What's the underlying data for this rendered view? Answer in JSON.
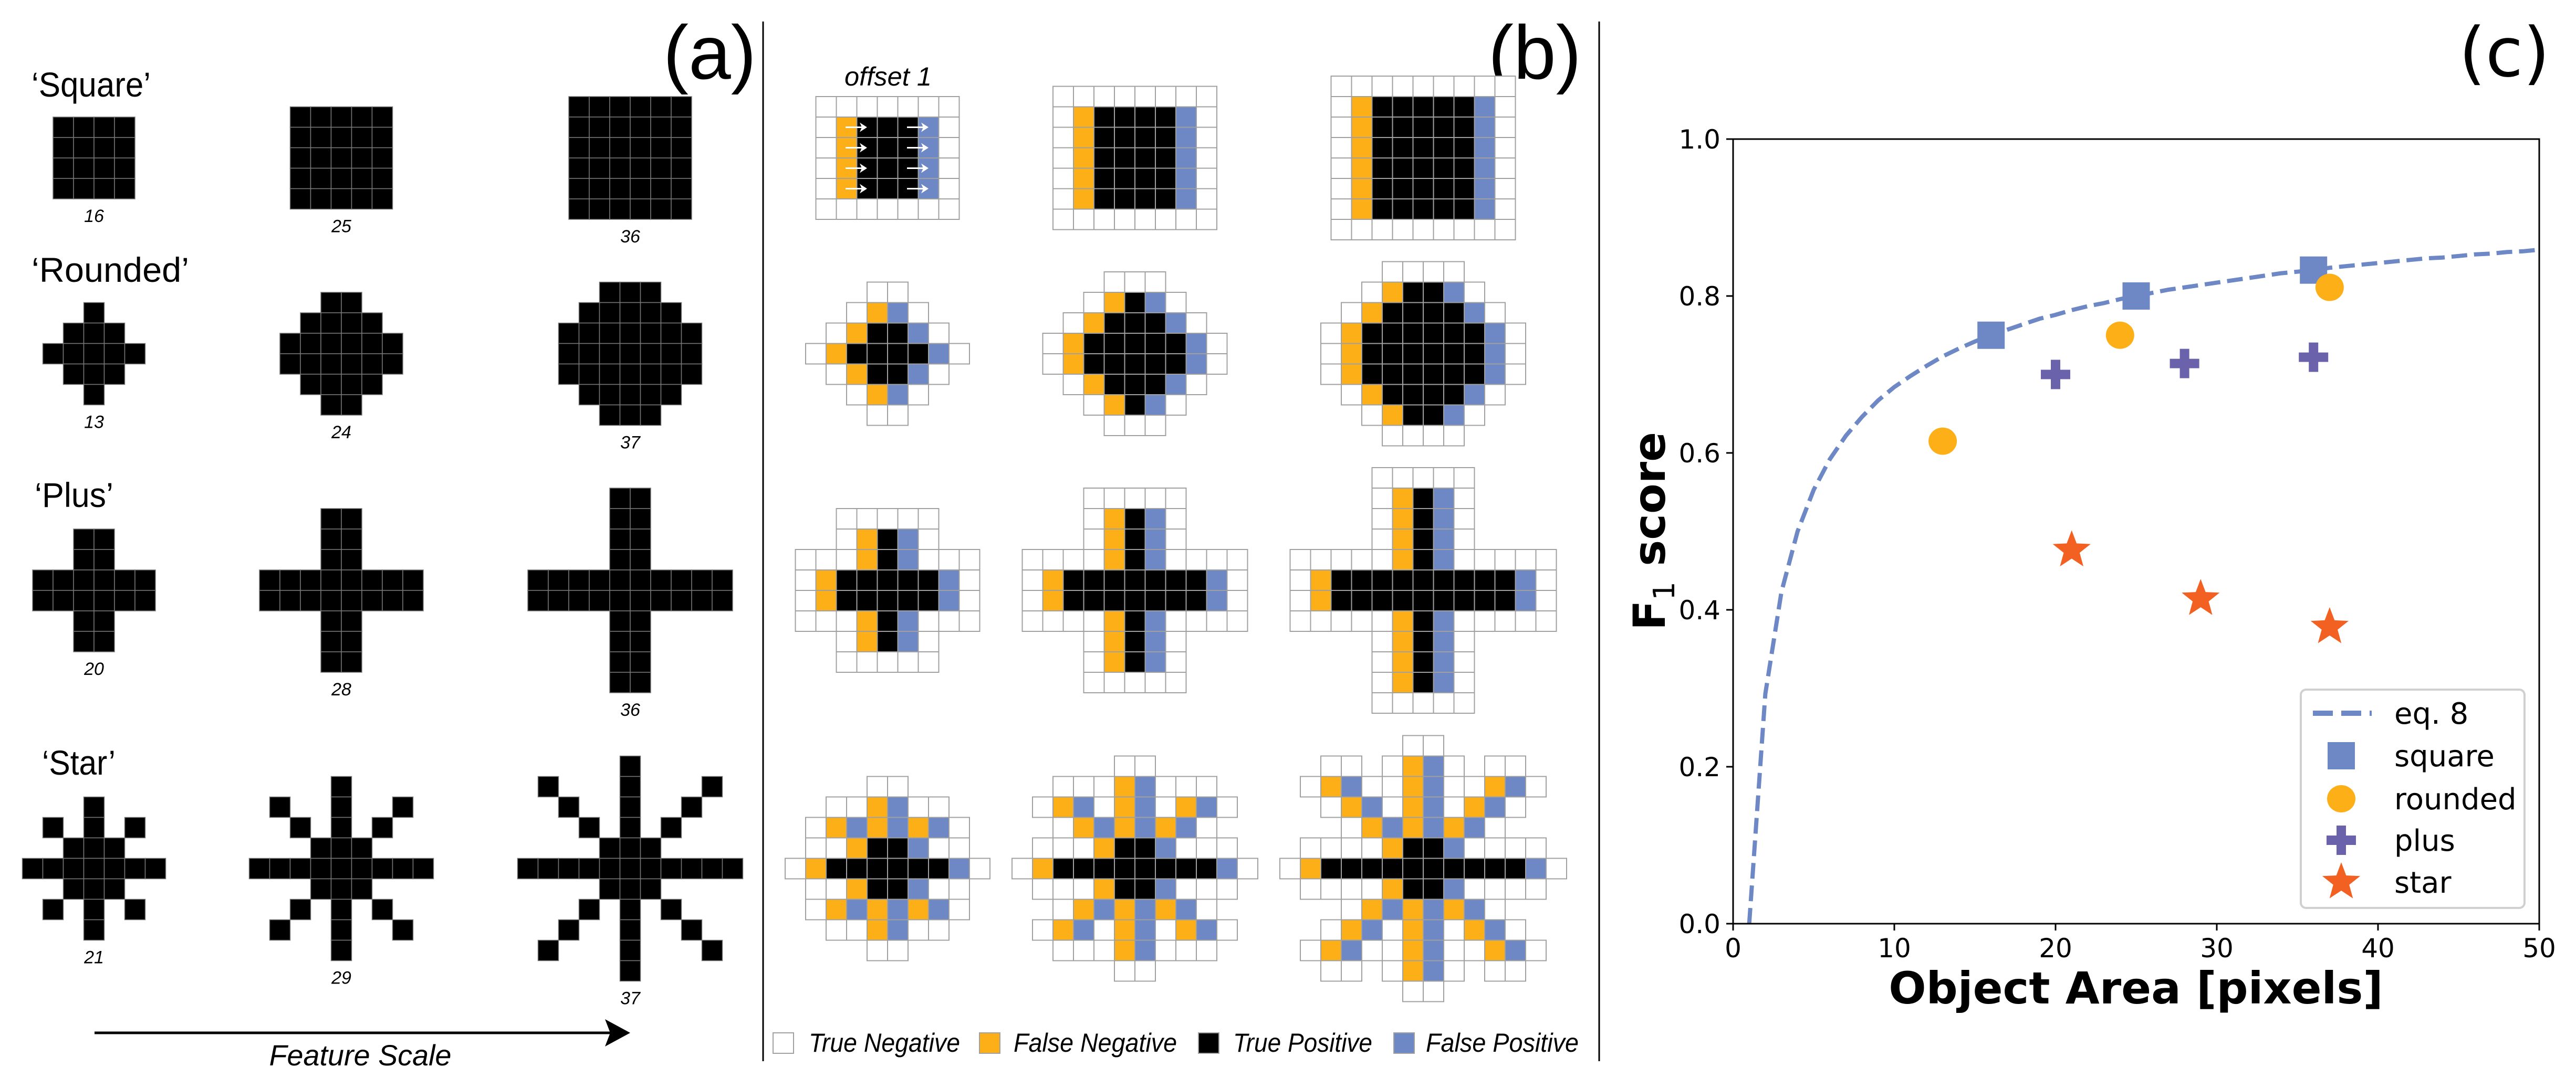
{
  "colors": {
    "true_negative": "#ffffff",
    "false_negative": "#FCAF17",
    "true_positive": "#000000",
    "false_positive": "#6D88C4",
    "square": "#6D88C4",
    "rounded": "#FCAF17",
    "plus": "#6A62AB",
    "star": "#F26122",
    "grid_line": "#a0a0a0"
  },
  "panel_a": {
    "label": "(a)",
    "arrow_label": "Feature Scale",
    "rows": [
      {
        "title": "‘Square’",
        "shapes": [
          {
            "area": "16",
            "mask": [
              "####",
              "####",
              "####",
              "####"
            ]
          },
          {
            "area": "25",
            "mask": [
              "#####",
              "#####",
              "#####",
              "#####",
              "#####"
            ]
          },
          {
            "area": "36",
            "mask": [
              "######",
              "######",
              "######",
              "######",
              "######",
              "######"
            ]
          }
        ]
      },
      {
        "title": "‘Rounded’",
        "shapes": [
          {
            "area": "13",
            "mask": [
              "..#..",
              ".###.",
              "#####",
              ".###.",
              "..#.."
            ]
          },
          {
            "area": "24",
            "mask": [
              "..##..",
              ".####.",
              "######",
              "######",
              ".####.",
              "..##.."
            ]
          },
          {
            "area": "37",
            "mask": [
              "..###..",
              ".#####.",
              "#######",
              "#######",
              "#######",
              ".#####.",
              "..###.."
            ]
          }
        ]
      },
      {
        "title": "‘Plus’",
        "shapes": [
          {
            "area": "20",
            "mask": [
              "..##..",
              "..##..",
              "######",
              "######",
              "..##..",
              "..##.."
            ]
          },
          {
            "area": "28",
            "mask": [
              "...##...",
              "...##...",
              "...##...",
              "########",
              "########",
              "...##...",
              "...##...",
              "...##..."
            ]
          },
          {
            "area": "36",
            "mask": [
              "....##....",
              "....##....",
              "....##....",
              "....##....",
              "##########",
              "##########",
              "....##....",
              "....##....",
              "....##....",
              "....##...."
            ]
          }
        ]
      },
      {
        "title": "‘Star’",
        "shapes": [
          {
            "area": "21",
            "mask": [
              "...#...",
              ".#.#.#.",
              "..###..",
              "#######",
              "..###..",
              ".#.#.#.",
              "...#..."
            ]
          },
          {
            "area": "29",
            "mask": [
              "....#....",
              ".#..#..#.",
              "..#.#.#..",
              "...###...",
              "#########",
              "...###...",
              "..#.#.#..",
              ".#..#..#.",
              "....#...."
            ]
          },
          {
            "area": "37",
            "mask": [
              ".....#.....",
              ".#...#...#.",
              "..#..#..#..",
              "...#.#.#...",
              "....###....",
              "###########",
              "....###....",
              "...#.#.#...",
              "..#..#..#..",
              ".#...#...#.",
              ".....#....."
            ]
          }
        ]
      }
    ]
  },
  "panel_b": {
    "label": "(b)",
    "annotation": "offset 1",
    "offset": 1,
    "legend": [
      {
        "label": "True Negative",
        "key": "true_negative"
      },
      {
        "label": "False Negative",
        "key": "false_negative"
      },
      {
        "label": "True Positive",
        "key": "true_positive"
      },
      {
        "label": "False Positive",
        "key": "false_positive"
      }
    ]
  },
  "chart_data": {
    "type": "scatter",
    "panel_label": "(c)",
    "xlabel": "Object Area [pixels]",
    "ylabel": {
      "main": "F",
      "sub": "1",
      "rest": " score"
    },
    "xlim": [
      0,
      50
    ],
    "ylim": [
      0.0,
      1.0
    ],
    "xticks": [
      "0",
      "10",
      "20",
      "30",
      "40",
      "50"
    ],
    "yticks": [
      "0.0",
      "0.2",
      "0.4",
      "0.6",
      "0.8",
      "1.0"
    ],
    "grid": false,
    "legend_position": "lower-right",
    "line": {
      "name": "eq. 8",
      "style": "dashed",
      "color": "#6D88C4",
      "x": [
        1,
        2,
        3,
        4,
        5,
        6,
        7,
        8,
        9,
        10,
        11,
        12,
        13,
        14,
        15,
        16,
        17,
        18,
        19,
        20,
        21,
        22,
        23,
        24,
        25,
        26,
        27,
        28,
        29,
        30,
        31,
        32,
        33,
        34,
        35,
        36,
        37,
        38,
        39,
        40,
        41,
        42,
        43,
        44,
        45,
        46,
        47,
        48,
        49,
        50
      ],
      "y": [
        0,
        0.293,
        0.423,
        0.5,
        0.553,
        0.592,
        0.622,
        0.646,
        0.667,
        0.684,
        0.698,
        0.711,
        0.723,
        0.733,
        0.742,
        0.75,
        0.757,
        0.764,
        0.771,
        0.776,
        0.782,
        0.787,
        0.791,
        0.796,
        0.8,
        0.804,
        0.808,
        0.811,
        0.814,
        0.817,
        0.82,
        0.823,
        0.826,
        0.829,
        0.831,
        0.833,
        0.836,
        0.838,
        0.84,
        0.842,
        0.844,
        0.846,
        0.848,
        0.849,
        0.851,
        0.853,
        0.854,
        0.856,
        0.857,
        0.859
      ]
    },
    "series": [
      {
        "name": "square",
        "marker": "square",
        "color": "#6D88C4",
        "x": [
          16,
          25,
          36
        ],
        "y": [
          0.75,
          0.8,
          0.833
        ]
      },
      {
        "name": "rounded",
        "marker": "circle",
        "color": "#FCAF17",
        "x": [
          13,
          24,
          37
        ],
        "y": [
          0.615,
          0.75,
          0.811
        ]
      },
      {
        "name": "plus",
        "marker": "plus",
        "color": "#6A62AB",
        "x": [
          20,
          28,
          36
        ],
        "y": [
          0.7,
          0.714,
          0.722
        ]
      },
      {
        "name": "star",
        "marker": "star",
        "color": "#F26122",
        "x": [
          21,
          29,
          37
        ],
        "y": [
          0.476,
          0.414,
          0.378
        ]
      }
    ]
  }
}
